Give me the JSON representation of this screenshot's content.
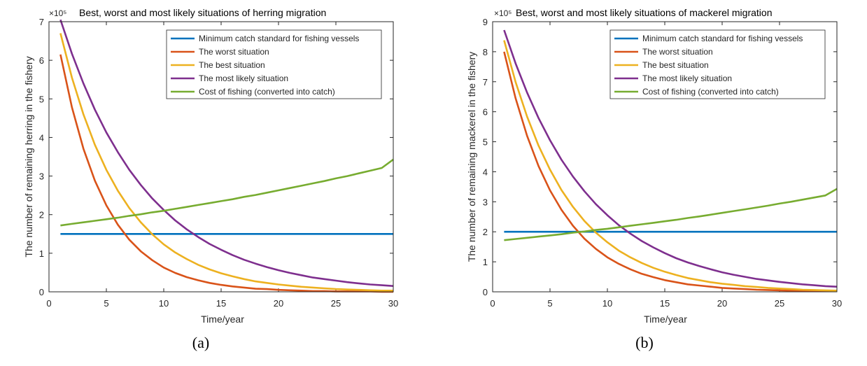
{
  "colors": {
    "series": [
      "#0072bd",
      "#d95319",
      "#edb120",
      "#7e2f8e",
      "#77ac30"
    ]
  },
  "chart_data": [
    {
      "type": "line",
      "title": "Best, worst and most likely situations of herring migration",
      "xlabel": "Time/year",
      "ylabel": "The number of remaining herring in the fishery",
      "exponent_label": "×10⁵",
      "caption": "(a)",
      "xlim": [
        0,
        30
      ],
      "ylim": [
        0,
        7
      ],
      "xticks": [
        0,
        5,
        10,
        15,
        20,
        25,
        30
      ],
      "yticks": [
        0,
        1,
        2,
        3,
        4,
        5,
        6,
        7
      ],
      "grid": false,
      "legend_position": "top-right",
      "x": [
        1,
        2,
        3,
        4,
        5,
        6,
        7,
        8,
        9,
        10,
        11,
        12,
        13,
        14,
        15,
        16,
        17,
        18,
        19,
        20,
        21,
        22,
        23,
        24,
        25,
        26,
        27,
        28,
        29,
        30
      ],
      "series": [
        {
          "name": "Minimum catch standard for fishing vessels",
          "values": [
            1.5,
            1.5,
            1.5,
            1.5,
            1.5,
            1.5,
            1.5,
            1.5,
            1.5,
            1.5,
            1.5,
            1.5,
            1.5,
            1.5,
            1.5,
            1.5,
            1.5,
            1.5,
            1.5,
            1.5,
            1.5,
            1.5,
            1.5,
            1.5,
            1.5,
            1.5,
            1.5,
            1.5,
            1.5,
            1.5
          ]
        },
        {
          "name": "The worst situation",
          "values": [
            6.15,
            4.78,
            3.71,
            2.88,
            2.24,
            1.74,
            1.35,
            1.05,
            0.82,
            0.63,
            0.49,
            0.38,
            0.3,
            0.23,
            0.18,
            0.14,
            0.11,
            0.08,
            0.07,
            0.05,
            0.04,
            0.03,
            0.02,
            0.02,
            0.01,
            0.01,
            0.01,
            0.01,
            0.0,
            0.0
          ]
        },
        {
          "name": "The best situation",
          "values": [
            6.7,
            5.55,
            4.6,
            3.81,
            3.16,
            2.62,
            2.17,
            1.8,
            1.49,
            1.23,
            1.02,
            0.85,
            0.7,
            0.58,
            0.48,
            0.4,
            0.33,
            0.27,
            0.23,
            0.19,
            0.16,
            0.13,
            0.11,
            0.09,
            0.07,
            0.06,
            0.05,
            0.04,
            0.03,
            0.03
          ]
        },
        {
          "name": "The most likely situation",
          "values": [
            7.05,
            6.17,
            5.4,
            4.72,
            4.13,
            3.62,
            3.16,
            2.77,
            2.42,
            2.12,
            1.85,
            1.62,
            1.42,
            1.24,
            1.09,
            0.95,
            0.83,
            0.73,
            0.64,
            0.56,
            0.49,
            0.43,
            0.37,
            0.33,
            0.29,
            0.25,
            0.22,
            0.19,
            0.17,
            0.15
          ]
        },
        {
          "name": "Cost of fishing (converted into catch)",
          "values": [
            1.72,
            1.76,
            1.8,
            1.84,
            1.88,
            1.92,
            1.97,
            2.01,
            2.06,
            2.1,
            2.15,
            2.2,
            2.25,
            2.3,
            2.35,
            2.4,
            2.46,
            2.51,
            2.57,
            2.63,
            2.69,
            2.75,
            2.81,
            2.87,
            2.94,
            3.0,
            3.07,
            3.14,
            3.21,
            3.43
          ]
        }
      ]
    },
    {
      "type": "line",
      "title": "Best, worst and most likely situations of mackerel migration",
      "xlabel": "Time/year",
      "ylabel": "The number of remaining mackerel in the fishery",
      "exponent_label": "×10⁵",
      "caption": "(b)",
      "xlim": [
        0,
        30
      ],
      "ylim": [
        0,
        9
      ],
      "xticks": [
        0,
        5,
        10,
        15,
        20,
        25,
        30
      ],
      "yticks": [
        0,
        1,
        2,
        3,
        4,
        5,
        6,
        7,
        8,
        9
      ],
      "grid": false,
      "legend_position": "top-right",
      "x": [
        1,
        2,
        3,
        4,
        5,
        6,
        7,
        8,
        9,
        10,
        11,
        12,
        13,
        14,
        15,
        16,
        17,
        18,
        19,
        20,
        21,
        22,
        23,
        24,
        25,
        26,
        27,
        28,
        29,
        30
      ],
      "series": [
        {
          "name": "Minimum catch standard for fishing vessels",
          "values": [
            2.0,
            2.0,
            2.0,
            2.0,
            2.0,
            2.0,
            2.0,
            2.0,
            2.0,
            2.0,
            2.0,
            2.0,
            2.0,
            2.0,
            2.0,
            2.0,
            2.0,
            2.0,
            2.0,
            2.0,
            2.0,
            2.0,
            2.0,
            2.0,
            2.0,
            2.0,
            2.0,
            2.0,
            2.0,
            2.0
          ]
        },
        {
          "name": "The worst situation",
          "values": [
            8.0,
            6.45,
            5.2,
            4.19,
            3.38,
            2.73,
            2.2,
            1.77,
            1.43,
            1.15,
            0.93,
            0.75,
            0.6,
            0.49,
            0.39,
            0.32,
            0.25,
            0.21,
            0.17,
            0.13,
            0.11,
            0.09,
            0.07,
            0.06,
            0.05,
            0.04,
            0.03,
            0.02,
            0.02,
            0.02
          ]
        },
        {
          "name": "The best situation",
          "values": [
            8.38,
            6.99,
            5.84,
            4.87,
            4.07,
            3.39,
            2.83,
            2.36,
            1.97,
            1.65,
            1.37,
            1.15,
            0.96,
            0.8,
            0.67,
            0.56,
            0.46,
            0.39,
            0.32,
            0.27,
            0.23,
            0.19,
            0.16,
            0.13,
            0.11,
            0.09,
            0.07,
            0.06,
            0.05,
            0.04
          ]
        },
        {
          "name": "The most likely situation",
          "values": [
            8.72,
            7.61,
            6.64,
            5.79,
            5.05,
            4.4,
            3.84,
            3.35,
            2.92,
            2.55,
            2.22,
            1.94,
            1.69,
            1.48,
            1.29,
            1.12,
            0.98,
            0.86,
            0.75,
            0.65,
            0.57,
            0.5,
            0.43,
            0.38,
            0.33,
            0.29,
            0.25,
            0.22,
            0.19,
            0.17
          ]
        },
        {
          "name": "Cost of fishing (converted into catch)",
          "values": [
            1.72,
            1.76,
            1.8,
            1.84,
            1.88,
            1.92,
            1.97,
            2.01,
            2.06,
            2.1,
            2.15,
            2.2,
            2.25,
            2.3,
            2.35,
            2.4,
            2.46,
            2.51,
            2.57,
            2.63,
            2.69,
            2.75,
            2.81,
            2.87,
            2.94,
            3.0,
            3.07,
            3.14,
            3.21,
            3.43
          ]
        }
      ]
    }
  ]
}
